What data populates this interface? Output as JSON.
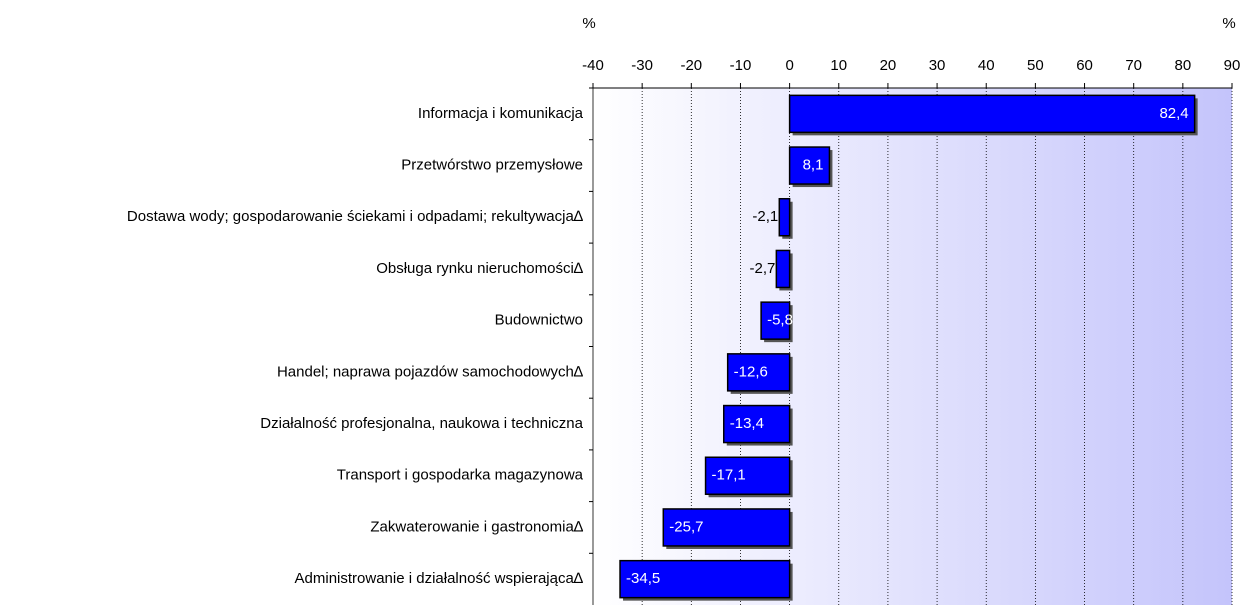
{
  "chart_data": {
    "type": "hbar",
    "x_label_left": "%",
    "x_label_right": "%",
    "categories": [
      "Informacja i komunikacja",
      "Przetwórstwo przemysłowe",
      "Dostawa wody; gospodarowanie ściekami i odpadami; rekultywacja∆",
      "Obsługa rynku nieruchomości∆",
      "Budownictwo",
      "Handel; naprawa pojazdów samochodowych∆",
      "Działalność profesjonalna, naukowa i techniczna",
      "Transport i gospodarka magazynowa",
      "Zakwaterowanie i gastronomia∆",
      "Administrowanie i działalność wspierająca∆"
    ],
    "values": [
      82.4,
      8.1,
      -2.1,
      -2.7,
      -5.8,
      -12.6,
      -13.4,
      -17.1,
      -25.7,
      -34.5
    ],
    "value_labels": [
      "82,4",
      "8,1",
      "-2,1",
      "-2,7",
      "-5,8",
      "-12,6",
      "-13,4",
      "-17,1",
      "-25,7",
      "-34,5"
    ],
    "color": "#0000ff",
    "xlim": [
      -40,
      90
    ],
    "xticks": [
      -40,
      -30,
      -20,
      -10,
      0,
      10,
      20,
      30,
      40,
      50,
      60,
      70,
      80,
      90
    ],
    "grid": true
  }
}
